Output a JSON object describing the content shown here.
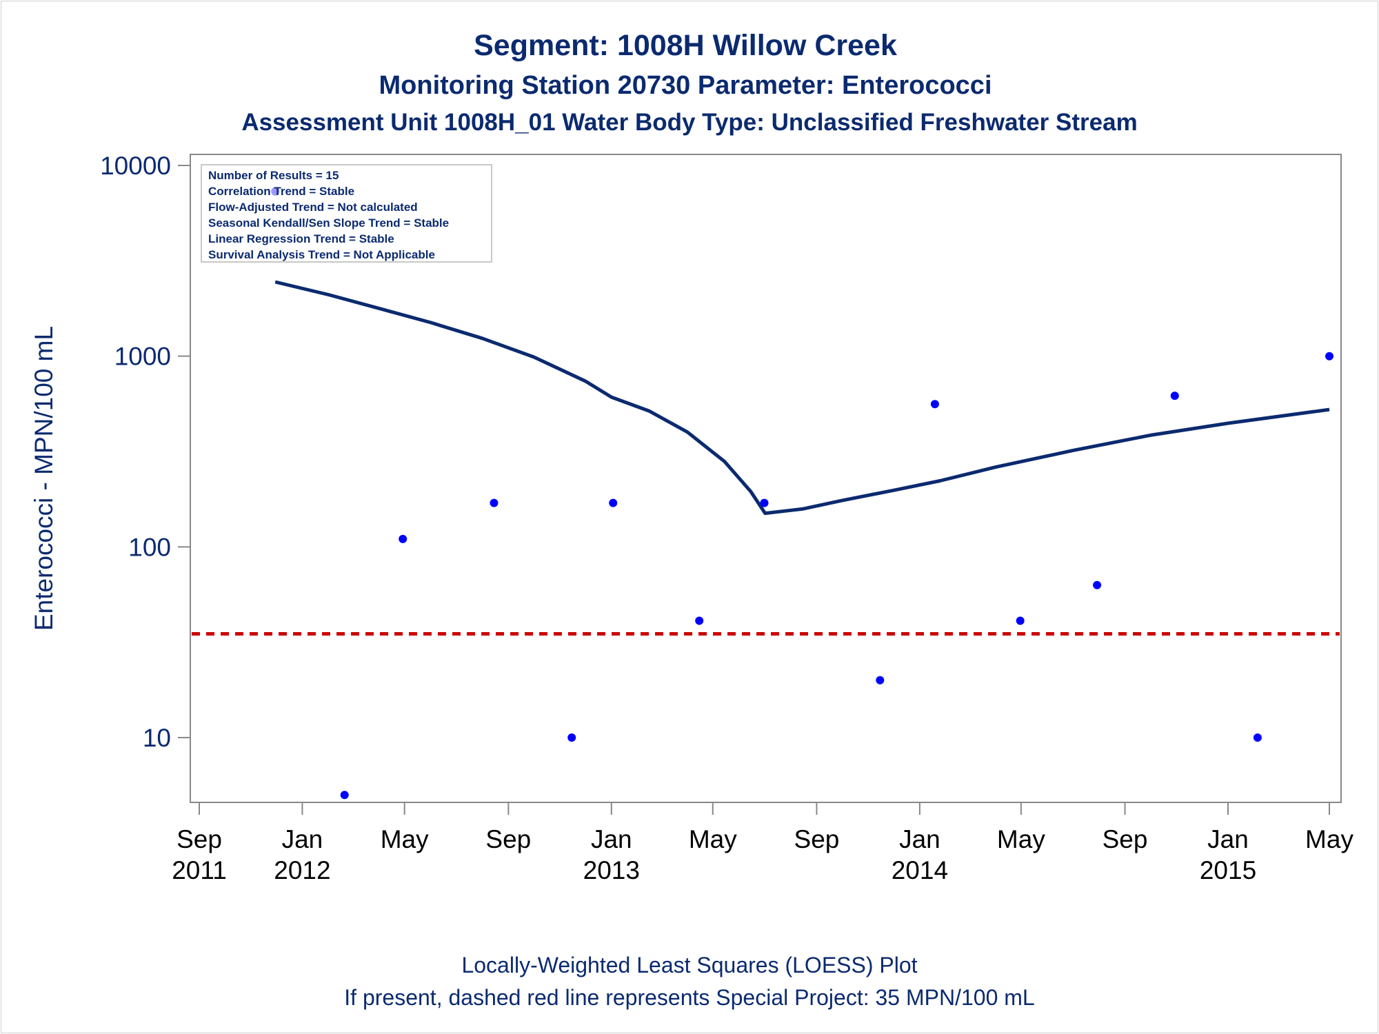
{
  "chart_data": {
    "type": "scatter",
    "title": "Segment: 1008H  Willow Creek",
    "subtitle1": "Monitoring Station 20730 Parameter: Enterococci",
    "subtitle2": "Assessment Unit 1008H_01   Water Body Type: Unclassified Freshwater Stream",
    "ylabel": "Enterococci - MPN/100 mL",
    "xlabel": "",
    "y_scale": "log",
    "ylim": [
      4.6,
      12000
    ],
    "xlim": [
      "2011-08-15",
      "2015-05-02"
    ],
    "y_ticks": [
      "10",
      "100",
      "1000",
      "10000"
    ],
    "x_ticks": [
      {
        "date": "2011-09-01",
        "l1": "Sep",
        "l2": "2011"
      },
      {
        "date": "2012-01-01",
        "l1": "Jan",
        "l2": "2012"
      },
      {
        "date": "2012-05-01",
        "l1": "May",
        "l2": ""
      },
      {
        "date": "2012-09-01",
        "l1": "Sep",
        "l2": ""
      },
      {
        "date": "2013-01-01",
        "l1": "Jan",
        "l2": "2013"
      },
      {
        "date": "2013-05-01",
        "l1": "May",
        "l2": ""
      },
      {
        "date": "2013-09-01",
        "l1": "Sep",
        "l2": ""
      },
      {
        "date": "2014-01-01",
        "l1": "Jan",
        "l2": "2014"
      },
      {
        "date": "2014-05-01",
        "l1": "May",
        "l2": ""
      },
      {
        "date": "2014-09-01",
        "l1": "Sep",
        "l2": ""
      },
      {
        "date": "2015-01-01",
        "l1": "Jan",
        "l2": "2015"
      },
      {
        "date": "2015-05-01",
        "l1": "May",
        "l2": ""
      }
    ],
    "points": [
      {
        "x": "2011-11-30",
        "y": 7300
      },
      {
        "x": "2012-02-20",
        "y": 5
      },
      {
        "x": "2012-04-29",
        "y": 110
      },
      {
        "x": "2012-08-15",
        "y": 170
      },
      {
        "x": "2012-11-15",
        "y": 10
      },
      {
        "x": "2013-01-03",
        "y": 170
      },
      {
        "x": "2013-04-15",
        "y": 41
      },
      {
        "x": "2013-07-01",
        "y": 170
      },
      {
        "x": "2013-11-15",
        "y": 20
      },
      {
        "x": "2014-01-19",
        "y": 560
      },
      {
        "x": "2014-04-30",
        "y": 41
      },
      {
        "x": "2014-07-30",
        "y": 63
      },
      {
        "x": "2014-10-30",
        "y": 620
      },
      {
        "x": "2015-02-05",
        "y": 10
      },
      {
        "x": "2015-05-01",
        "y": 1000
      }
    ],
    "loess": [
      {
        "x": "2011-11-30",
        "y": 2450
      },
      {
        "x": "2012-02-01",
        "y": 2100
      },
      {
        "x": "2012-04-01",
        "y": 1780
      },
      {
        "x": "2012-06-01",
        "y": 1500
      },
      {
        "x": "2012-08-01",
        "y": 1240
      },
      {
        "x": "2012-10-01",
        "y": 990
      },
      {
        "x": "2012-12-01",
        "y": 740
      },
      {
        "x": "2013-01-01",
        "y": 610
      },
      {
        "x": "2013-02-15",
        "y": 515
      },
      {
        "x": "2013-04-01",
        "y": 400
      },
      {
        "x": "2013-05-15",
        "y": 280
      },
      {
        "x": "2013-06-15",
        "y": 195
      },
      {
        "x": "2013-07-02",
        "y": 150
      },
      {
        "x": "2013-08-15",
        "y": 158
      },
      {
        "x": "2013-10-01",
        "y": 175
      },
      {
        "x": "2013-12-01",
        "y": 198
      },
      {
        "x": "2014-01-25",
        "y": 222
      },
      {
        "x": "2014-04-01",
        "y": 262
      },
      {
        "x": "2014-07-01",
        "y": 320
      },
      {
        "x": "2014-10-01",
        "y": 385
      },
      {
        "x": "2015-01-01",
        "y": 445
      },
      {
        "x": "2015-05-01",
        "y": 525
      }
    ],
    "reference_line": {
      "y": 35,
      "color": "#cc0000",
      "style": "dashed"
    },
    "marker_color": "#0000ff",
    "line_color": "#0b2a6f",
    "legend_placement": "top-left",
    "legend": [
      "Number of Results = 15",
      "Correlation Trend = Stable",
      "Flow-Adjusted Trend = Not calculated",
      "Seasonal Kendall/Sen Slope Trend = Stable",
      "Linear Regression Trend = Stable",
      "Survival Analysis Trend = Not Applicable"
    ],
    "footnote1": "Locally-Weighted Least Squares (LOESS) Plot",
    "footnote2": "If present, dashed red line represents Special Project: 35 MPN/100 mL"
  }
}
